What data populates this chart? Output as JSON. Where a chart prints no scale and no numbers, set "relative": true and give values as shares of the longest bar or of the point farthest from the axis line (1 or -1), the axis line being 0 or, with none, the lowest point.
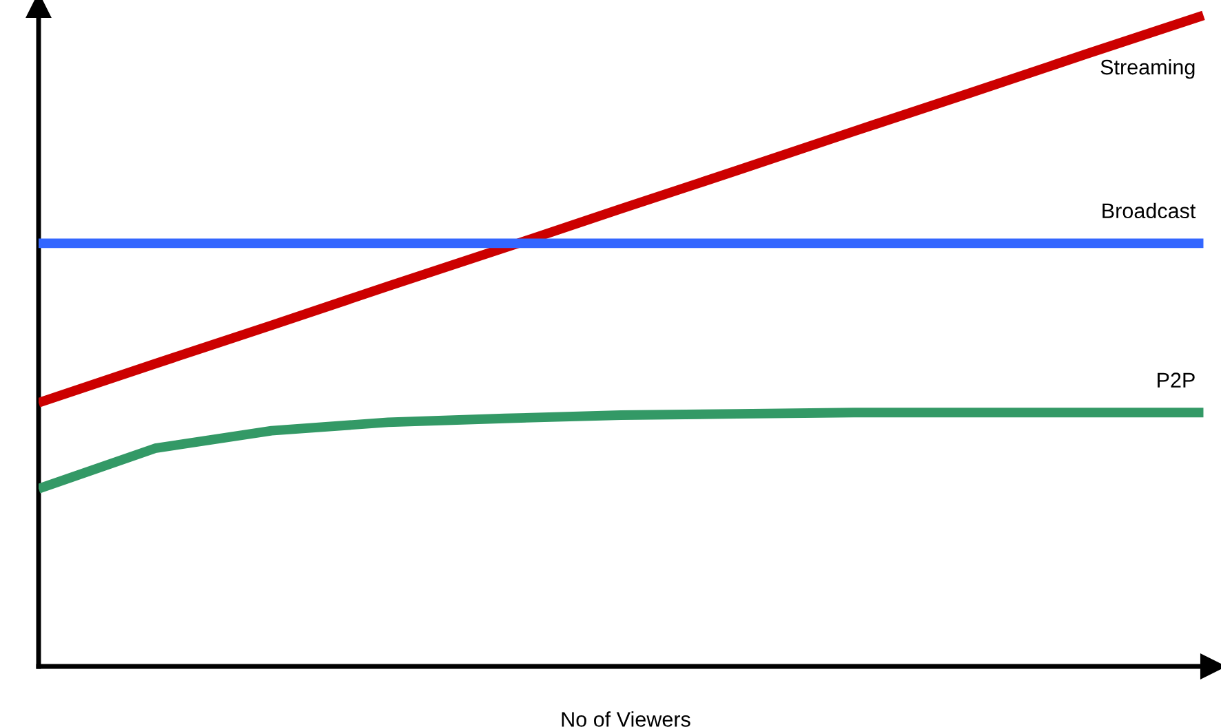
{
  "chart_data": {
    "type": "line",
    "relative": true,
    "xlabel": "No of Viewers",
    "categories": [
      null,
      null,
      null,
      null,
      null,
      null,
      null,
      null,
      null,
      null,
      null
    ],
    "series": [
      {
        "name": "Streaming",
        "color": "#cc0000",
        "values": [
          0.405,
          0.465,
          0.524,
          0.584,
          0.643,
          0.703,
          0.762,
          0.822,
          0.881,
          0.941,
          1.0
        ]
      },
      {
        "name": "Broadcast",
        "color": "#3366ff",
        "values": [
          0.65,
          0.65,
          0.65,
          0.65,
          0.65,
          0.65,
          0.65,
          0.65,
          0.65,
          0.65,
          0.65
        ]
      },
      {
        "name": "P2P",
        "color": "#339966",
        "values": [
          0.273,
          0.335,
          0.362,
          0.375,
          0.381,
          0.386,
          0.388,
          0.39,
          0.39,
          0.39,
          0.39
        ]
      }
    ],
    "legend": false,
    "grid": false,
    "marker": "none",
    "line_style": "solid"
  }
}
